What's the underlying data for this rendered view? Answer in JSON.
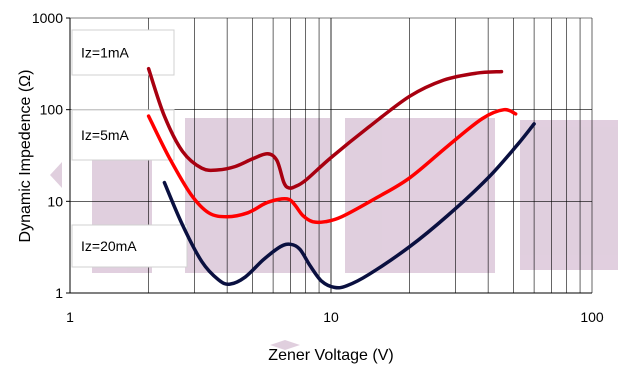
{
  "chart_data": {
    "type": "line",
    "xlabel": "Zener Voltage (V)",
    "ylabel": "Dynamic Impedence (Ω)",
    "x_scale": "log",
    "y_scale": "log",
    "xlim": [
      1,
      100
    ],
    "ylim": [
      1,
      1000
    ],
    "x_tick_labels": [
      "1",
      "10",
      "100"
    ],
    "y_tick_labels": [
      "1",
      "10",
      "100",
      "1000"
    ],
    "grid": true,
    "colors": {
      "watermark": "#c8a8c4",
      "axis": "#000000",
      "grid": "#000000",
      "label_box_border": "#d0d0d0"
    },
    "series": [
      {
        "name": "Iz=1mA",
        "color": "#a80010",
        "x": [
          2.0,
          2.3,
          2.7,
          3.2,
          3.7,
          4.3,
          5.0,
          5.7,
          6.2,
          6.6,
          6.9,
          7.3,
          8.0,
          10,
          14,
          20,
          27,
          36,
          45
        ],
        "y": [
          280,
          85,
          35,
          23,
          22,
          24,
          29,
          33,
          28,
          16,
          14,
          14.5,
          17,
          30,
          65,
          140,
          210,
          250,
          260
        ]
      },
      {
        "name": "Iz=5mA",
        "color": "#ff0000",
        "x": [
          2.0,
          2.4,
          2.9,
          3.4,
          4.0,
          4.8,
          5.6,
          6.3,
          6.9,
          7.3,
          7.8,
          8.5,
          9.5,
          11,
          15,
          20,
          28,
          38,
          46,
          51
        ],
        "y": [
          85,
          30,
          12,
          7.5,
          6.8,
          7.5,
          9.5,
          10.5,
          10.5,
          9,
          7,
          6,
          6,
          6.8,
          11,
          18,
          40,
          80,
          100,
          90
        ]
      },
      {
        "name": "Iz=20mA",
        "color": "#0a1040",
        "x": [
          2.3,
          2.7,
          3.2,
          3.7,
          4.1,
          4.7,
          5.5,
          6.4,
          7.0,
          7.6,
          8.3,
          9.2,
          10.3,
          11.5,
          14,
          20,
          28,
          40,
          52,
          60
        ],
        "y": [
          16,
          5.5,
          2.2,
          1.4,
          1.25,
          1.5,
          2.3,
          3.2,
          3.4,
          3.0,
          2.0,
          1.35,
          1.15,
          1.2,
          1.6,
          3.2,
          7,
          18,
          42,
          70
        ]
      }
    ]
  }
}
